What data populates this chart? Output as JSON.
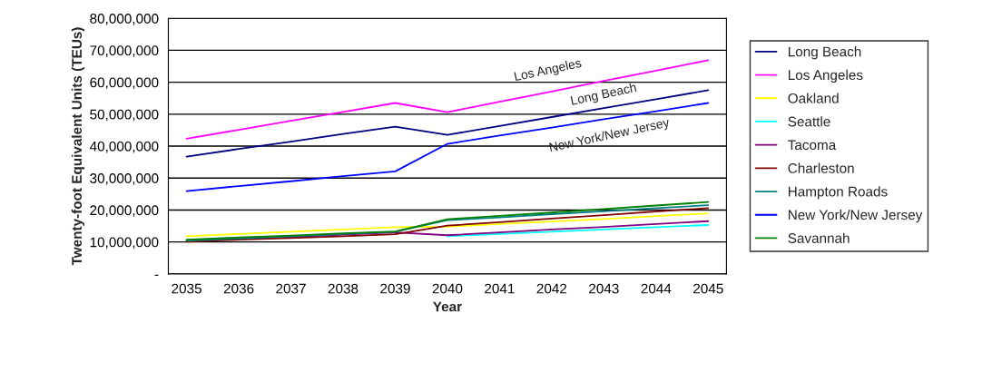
{
  "chart_data": {
    "type": "line",
    "xlabel": "Year",
    "ylabel": "Twenty-foot Equivalent Units (TEUs)",
    "categories": [
      "2035",
      "2036",
      "2037",
      "2038",
      "2039",
      "2040",
      "2041",
      "2042",
      "2043",
      "2044",
      "2045"
    ],
    "series": [
      {
        "name": "Long Beach",
        "color": "#000080",
        "values": [
          36700000,
          39100000,
          41400000,
          43800000,
          46100000,
          43500000,
          46300000,
          49100000,
          51900000,
          54700000,
          57500000
        ]
      },
      {
        "name": "Los Angeles",
        "color": "#ff00ff",
        "values": [
          42300000,
          45100000,
          47900000,
          50700000,
          53500000,
          50600000,
          53900000,
          57100000,
          60400000,
          63600000,
          66900000
        ]
      },
      {
        "name": "Oakland",
        "color": "#ffff00",
        "values": [
          11800000,
          12500000,
          13200000,
          13900000,
          14600000,
          14800000,
          15600000,
          16400000,
          17200000,
          18100000,
          18900000
        ]
      },
      {
        "name": "Seattle",
        "color": "#00ffff",
        "values": [
          null,
          null,
          null,
          null,
          null,
          11800000,
          12500000,
          13200000,
          13900000,
          14600000,
          15300000
        ]
      },
      {
        "name": "Tacoma",
        "color": "#800080",
        "values": [
          10300000,
          11000000,
          11600000,
          12300000,
          13000000,
          12100000,
          13000000,
          13900000,
          14700000,
          15600000,
          16500000
        ]
      },
      {
        "name": "Charleston",
        "color": "#800000",
        "values": [
          10100000,
          10700000,
          11200000,
          11800000,
          12400000,
          15100000,
          16200000,
          17300000,
          18400000,
          19500000,
          20600000
        ]
      },
      {
        "name": "Hampton Roads",
        "color": "#008080",
        "values": [
          10400000,
          11100000,
          11800000,
          12500000,
          13200000,
          16800000,
          17700000,
          18700000,
          19600000,
          20600000,
          21500000
        ]
      },
      {
        "name": "New York/New Jersey",
        "color": "#0000ff",
        "values": [
          25900000,
          27500000,
          29000000,
          30600000,
          32100000,
          40700000,
          43300000,
          45800000,
          48400000,
          50900000,
          53500000
        ]
      },
      {
        "name": "Savannah",
        "color": "#008000",
        "values": [
          10700000,
          11400000,
          12000000,
          12700000,
          13300000,
          17100000,
          18200000,
          19200000,
          20300000,
          21400000,
          22500000
        ]
      }
    ],
    "annotations": [
      "Los Angeles",
      "Long Beach",
      "New York/New Jersey"
    ],
    "ylim": [
      0,
      80000000
    ],
    "yticks": [
      {
        "value": 0,
        "label": "-"
      },
      {
        "value": 10000000,
        "label": "10,000,000"
      },
      {
        "value": 20000000,
        "label": "20,000,000"
      },
      {
        "value": 30000000,
        "label": "30,000,000"
      },
      {
        "value": 40000000,
        "label": "40,000,000"
      },
      {
        "value": 50000000,
        "label": "50,000,000"
      },
      {
        "value": 60000000,
        "label": "60,000,000"
      },
      {
        "value": 70000000,
        "label": "70,000,000"
      },
      {
        "value": 80000000,
        "label": "80,000,000"
      }
    ],
    "grid": "y",
    "legend": "right",
    "marker": "none",
    "line_style": "solid"
  }
}
